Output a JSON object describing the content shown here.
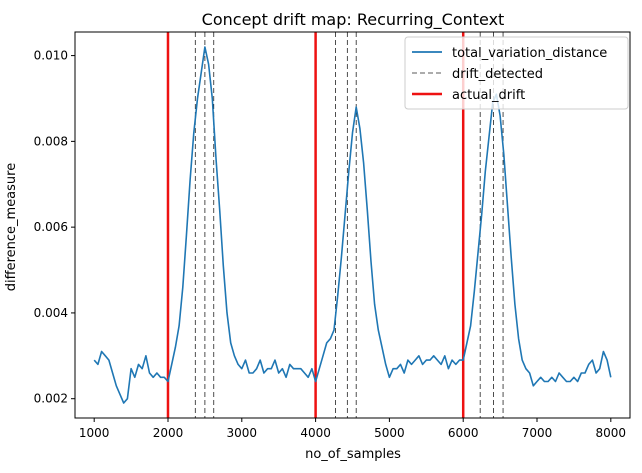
{
  "chart_data": {
    "type": "line",
    "title": "Concept drift map: Recurring_Context",
    "xlabel": "no_of_samples",
    "ylabel": "difference_measure",
    "xlim": [
      740,
      8260
    ],
    "ylim": [
      0.00155,
      0.01055
    ],
    "xticks": [
      1000,
      2000,
      3000,
      4000,
      5000,
      6000,
      7000,
      8000
    ],
    "yticks": [
      0.002,
      0.004,
      0.006,
      0.008,
      0.01
    ],
    "xtick_labels": [
      "1000",
      "2000",
      "3000",
      "4000",
      "5000",
      "6000",
      "7000",
      "8000"
    ],
    "ytick_labels": [
      "0.002",
      "0.004",
      "0.006",
      "0.008",
      "0.010"
    ],
    "grid": false,
    "legend_position": "top-right",
    "series": [
      {
        "name": "total_variation_distance",
        "color": "#1f77b4",
        "x": [
          1000,
          1050,
          1100,
          1150,
          1200,
          1250,
          1300,
          1350,
          1400,
          1450,
          1500,
          1550,
          1600,
          1650,
          1700,
          1750,
          1800,
          1850,
          1900,
          1950,
          2000,
          2050,
          2100,
          2150,
          2200,
          2250,
          2300,
          2350,
          2400,
          2450,
          2500,
          2550,
          2600,
          2650,
          2700,
          2750,
          2800,
          2850,
          2900,
          2950,
          3000,
          3050,
          3100,
          3150,
          3200,
          3250,
          3300,
          3350,
          3400,
          3450,
          3500,
          3550,
          3600,
          3650,
          3700,
          3750,
          3800,
          3850,
          3900,
          3950,
          4000,
          4050,
          4100,
          4150,
          4200,
          4250,
          4300,
          4350,
          4400,
          4450,
          4500,
          4550,
          4600,
          4650,
          4700,
          4750,
          4800,
          4850,
          4900,
          4950,
          5000,
          5050,
          5100,
          5150,
          5200,
          5250,
          5300,
          5350,
          5400,
          5450,
          5500,
          5550,
          5600,
          5650,
          5700,
          5750,
          5800,
          5850,
          5900,
          5950,
          6000,
          6050,
          6100,
          6150,
          6200,
          6250,
          6300,
          6350,
          6400,
          6450,
          6500,
          6550,
          6600,
          6650,
          6700,
          6750,
          6800,
          6850,
          6900,
          6950,
          7000,
          7050,
          7100,
          7150,
          7200,
          7250,
          7300,
          7350,
          7400,
          7450,
          7500,
          7550,
          7600,
          7650,
          7700,
          7750,
          7800,
          7850,
          7900,
          7950,
          8000
        ],
        "y": [
          0.0029,
          0.0028,
          0.0031,
          0.003,
          0.0029,
          0.0026,
          0.0023,
          0.0021,
          0.0019,
          0.002,
          0.0027,
          0.0025,
          0.0028,
          0.0027,
          0.003,
          0.0026,
          0.0025,
          0.0026,
          0.0025,
          0.0025,
          0.0024,
          0.0028,
          0.0032,
          0.0037,
          0.0046,
          0.0058,
          0.0071,
          0.0082,
          0.009,
          0.0096,
          0.0102,
          0.0098,
          0.009,
          0.0076,
          0.0064,
          0.0051,
          0.004,
          0.0033,
          0.003,
          0.0028,
          0.0027,
          0.0029,
          0.0026,
          0.0026,
          0.0027,
          0.0029,
          0.0026,
          0.0027,
          0.0027,
          0.0029,
          0.0026,
          0.0027,
          0.0025,
          0.0028,
          0.0027,
          0.0027,
          0.0027,
          0.0026,
          0.0025,
          0.0027,
          0.0024,
          0.0027,
          0.003,
          0.0033,
          0.0034,
          0.0036,
          0.0044,
          0.0053,
          0.0063,
          0.0073,
          0.0082,
          0.0088,
          0.0083,
          0.0075,
          0.0064,
          0.0052,
          0.0042,
          0.0036,
          0.0032,
          0.0028,
          0.0025,
          0.0027,
          0.0027,
          0.0028,
          0.0026,
          0.0029,
          0.0028,
          0.0029,
          0.003,
          0.0028,
          0.0029,
          0.0029,
          0.003,
          0.0029,
          0.0028,
          0.003,
          0.0027,
          0.0029,
          0.0028,
          0.0029,
          0.0029,
          0.0033,
          0.0037,
          0.0045,
          0.0054,
          0.0063,
          0.0073,
          0.0081,
          0.0089,
          0.0091,
          0.0086,
          0.0077,
          0.0065,
          0.0053,
          0.0042,
          0.0034,
          0.0029,
          0.0027,
          0.0026,
          0.0023,
          0.0024,
          0.0025,
          0.0024,
          0.0024,
          0.0025,
          0.0024,
          0.0026,
          0.0025,
          0.0024,
          0.0024,
          0.0025,
          0.0024,
          0.0026,
          0.0026,
          0.0028,
          0.0029,
          0.0026,
          0.0027,
          0.0031,
          0.0029,
          0.0025
        ]
      }
    ],
    "drift_detected": {
      "name": "drift_detected",
      "color": "#222222",
      "x": [
        2370,
        2500,
        2620,
        4270,
        4430,
        4550,
        6230,
        6410,
        6540
      ]
    },
    "actual_drift": {
      "name": "actual_drift",
      "color": "#ee1111",
      "x": [
        2000,
        4000,
        6000
      ]
    }
  }
}
